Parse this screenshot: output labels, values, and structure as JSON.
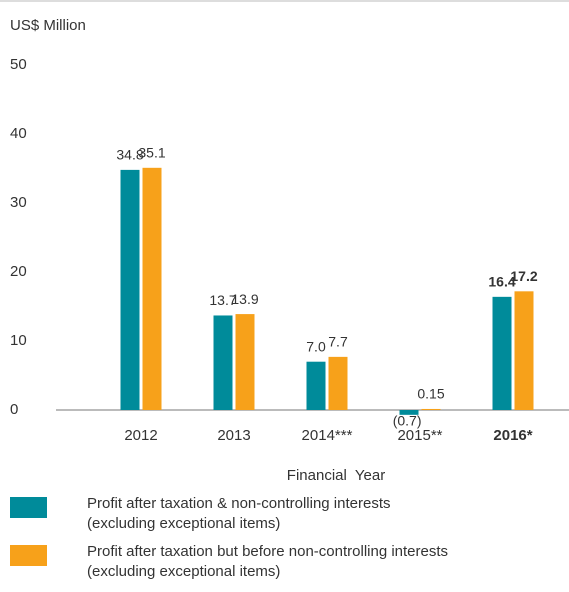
{
  "chart_data": {
    "type": "bar",
    "y_label": "US$ Million",
    "x_label": "Financial  Year",
    "categories": [
      "2012",
      "2013",
      "2014***",
      "2015**",
      "2016*"
    ],
    "series": [
      {
        "name": "Profit after taxation & non-controlling interests\n (excluding exceptional items)",
        "color": "#008b9a",
        "values": [
          34.8,
          13.7,
          7.0,
          -0.7,
          16.4
        ],
        "value_labels": [
          "34.8",
          "13.7",
          "7.0",
          "(0.7)",
          "16.4"
        ]
      },
      {
        "name": "Profit after taxation but before non-controlling interests\n (excluding exceptional items)",
        "color": "#f7a11a",
        "values": [
          35.1,
          13.9,
          7.7,
          0.15,
          17.2
        ],
        "value_labels": [
          "35.1",
          "13.9",
          "7.7",
          "0.15",
          "17.2"
        ]
      }
    ],
    "ylim": [
      0,
      50
    ],
    "yticks": [
      0,
      10,
      20,
      30,
      40,
      50
    ],
    "grid": false
  }
}
